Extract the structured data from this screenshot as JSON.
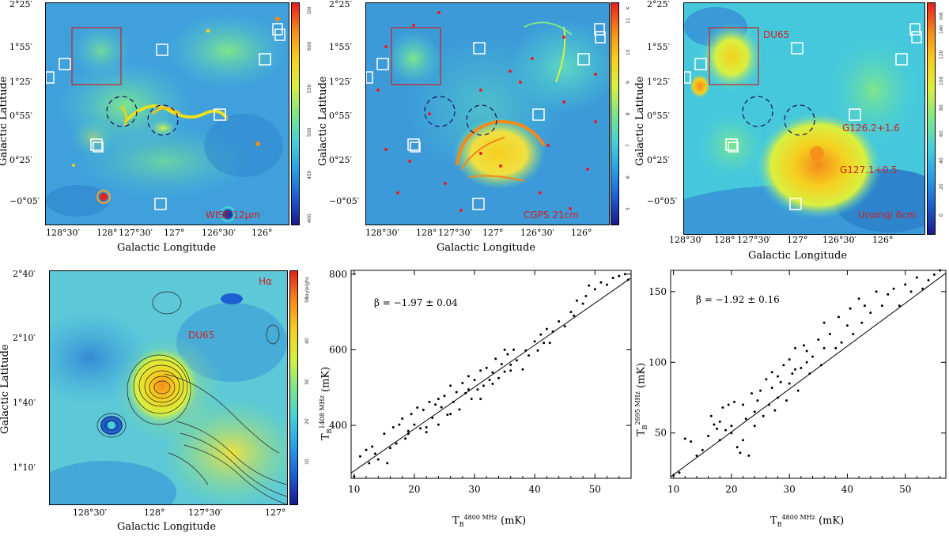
{
  "colors": {
    "panel_bg": "#3d9ad8",
    "red_box": "#d02020",
    "label_red": "#d02020",
    "square": "#ffffff",
    "circle": "#1a1a6a",
    "contour": "#222222"
  },
  "colorbar_stops": [
    "#1a1a8c",
    "#1e5fd2",
    "#28a0e6",
    "#46d0d8",
    "#7ee68a",
    "#d8f040",
    "#f5d020",
    "#f58a1a",
    "#e62020"
  ],
  "panels": {
    "wise": {
      "label": "WISE 12μm",
      "cbar_unit": "DN",
      "cbar_ticks": [
        "400",
        "450",
        "500",
        "550",
        "600"
      ],
      "xlabel": "Galactic Longitude",
      "ylabel": "Galactic Latitude",
      "xticks": [
        "128°30′",
        "128°",
        "127°30′",
        "127°",
        "126°30′",
        "126°"
      ],
      "yticks": [
        "2°25′",
        "1°55′",
        "1°25′",
        "0°55′",
        "0°25′",
        "−0°05′"
      ]
    },
    "cgps": {
      "label": "CGPS 21cm",
      "cbar_unit": "K",
      "cbar_ticks": [
        "5",
        "6",
        "7",
        "8",
        "9",
        "10",
        "11"
      ],
      "xlabel": "Galactic Longitude",
      "ylabel": "Galactic Latitude",
      "xticks": [
        "128°30′",
        "128°",
        "127°30′",
        "127°",
        "126°30′",
        "126°"
      ],
      "yticks": [
        "2°25′",
        "1°55′",
        "1°25′",
        "0°55′",
        "0°25′",
        "−0°05′"
      ]
    },
    "urumqi": {
      "label": "Urumqi 6cm",
      "cbar_unit": "mK",
      "cbar_ticks": [
        "0",
        "20",
        "40",
        "60",
        "80",
        "100",
        "120",
        "140"
      ],
      "xlabel": "Galactic Longitude",
      "ylabel": "Galactic Latitude",
      "xticks": [
        "128°30′",
        "128°",
        "127°30′",
        "127°",
        "126°30′",
        "126°"
      ],
      "yticks": [
        "2°25′",
        "1°55′",
        "1°25′",
        "0°55′",
        "0°25′",
        "−0°05′"
      ],
      "annotations": [
        "DU65",
        "G126.2+1.6",
        "G127.1+0.5"
      ]
    },
    "halpha": {
      "label": "Hα",
      "cbar_unit": "Rayleighs",
      "cbar_ticks": [
        "10",
        "20",
        "30",
        "40",
        "50"
      ],
      "xlabel": "Galactic Longitude",
      "ylabel": "Galactic Latitude",
      "xticks": [
        "128°30′",
        "128°",
        "127°30′",
        "127°"
      ],
      "yticks": [
        "2°40′",
        "2°10′",
        "1°40′",
        "1°10′"
      ],
      "annotations": [
        "DU65"
      ]
    }
  },
  "chart_data": [
    {
      "type": "scatter",
      "xlabel_main": "T",
      "xlabel_sub": "B",
      "xlabel_sup": "4800 MHz",
      "xlabel_unit": "(mK)",
      "ylabel_main": "T",
      "ylabel_sub": "B",
      "ylabel_sup": "1408 MHz",
      "ylabel_unit": "(mK)",
      "annotation": "β = −1.97 ± 0.04",
      "xlim": [
        9.5,
        56
      ],
      "ylim": [
        260,
        810
      ],
      "xticks": [
        10,
        20,
        30,
        40,
        50
      ],
      "yticks": [
        400,
        600,
        800
      ],
      "fit": {
        "x": [
          9.5,
          56
        ],
        "y": [
          274,
          790
        ]
      },
      "points": [
        [
          10,
          265
        ],
        [
          11,
          318
        ],
        [
          12,
          335
        ],
        [
          12.5,
          300
        ],
        [
          13,
          344
        ],
        [
          13.5,
          325
        ],
        [
          14,
          310
        ],
        [
          15,
          378
        ],
        [
          15.5,
          300
        ],
        [
          16,
          340
        ],
        [
          16.5,
          395
        ],
        [
          17,
          352
        ],
        [
          17.5,
          402
        ],
        [
          18,
          418
        ],
        [
          18.5,
          365
        ],
        [
          19,
          378
        ],
        [
          19.5,
          430
        ],
        [
          20,
          402
        ],
        [
          20.5,
          447
        ],
        [
          21,
          392
        ],
        [
          21.5,
          441
        ],
        [
          22,
          382
        ],
        [
          22.5,
          462
        ],
        [
          23,
          420
        ],
        [
          23.5,
          455
        ],
        [
          24,
          402
        ],
        [
          24.5,
          448
        ],
        [
          25,
          478
        ],
        [
          25.5,
          428
        ],
        [
          26,
          505
        ],
        [
          26.5,
          462
        ],
        [
          27,
          488
        ],
        [
          27.5,
          442
        ],
        [
          28,
          512
        ],
        [
          28.5,
          485
        ],
        [
          29,
          530
        ],
        [
          29.5,
          470
        ],
        [
          30,
          520
        ],
        [
          30.5,
          495
        ],
        [
          31,
          545
        ],
        [
          31.5,
          505
        ],
        [
          32,
          552
        ],
        [
          32.5,
          520
        ],
        [
          33,
          540
        ],
        [
          33.5,
          576
        ],
        [
          34,
          525
        ],
        [
          34.5,
          562
        ],
        [
          35,
          542
        ],
        [
          35.5,
          588
        ],
        [
          36,
          560
        ],
        [
          36.5,
          600
        ],
        [
          37,
          572
        ],
        [
          38,
          548
        ],
        [
          38.5,
          598
        ],
        [
          39,
          585
        ],
        [
          40,
          622
        ],
        [
          40.5,
          598
        ],
        [
          41,
          640
        ],
        [
          41.5,
          618
        ],
        [
          42,
          655
        ],
        [
          42.5,
          618
        ],
        [
          43,
          648
        ],
        [
          44,
          675
        ],
        [
          45,
          662
        ],
        [
          46,
          700
        ],
        [
          46.5,
          690
        ],
        [
          47,
          730
        ],
        [
          48,
          722
        ],
        [
          48.5,
          742
        ],
        [
          49,
          770
        ],
        [
          50,
          760
        ],
        [
          51,
          778
        ],
        [
          52,
          772
        ],
        [
          53,
          790
        ],
        [
          54,
          795
        ],
        [
          55,
          800
        ],
        [
          55.5,
          785
        ],
        [
          22,
          395
        ],
        [
          26,
          430
        ],
        [
          29,
          495
        ],
        [
          33,
          510
        ],
        [
          36,
          545
        ],
        [
          19,
          385
        ],
        [
          24,
          470
        ],
        [
          31,
          470
        ],
        [
          35,
          600
        ]
      ]
    },
    {
      "type": "scatter",
      "xlabel_main": "T",
      "xlabel_sub": "B",
      "xlabel_sup": "4800 MHz",
      "xlabel_unit": "(mK)",
      "ylabel_main": "T",
      "ylabel_sub": "B",
      "ylabel_sup": "2695 MHz",
      "ylabel_unit": "(mK)",
      "annotation": "β = −1.92 ± 0.16",
      "xlim": [
        9.5,
        57
      ],
      "ylim": [
        18,
        165
      ],
      "xticks": [
        10,
        20,
        30,
        40,
        50
      ],
      "yticks": [
        50,
        100,
        150
      ],
      "fit": {
        "x": [
          9.5,
          57
        ],
        "y": [
          19,
          163
        ]
      },
      "points": [
        [
          10,
          20
        ],
        [
          11,
          22
        ],
        [
          12,
          46
        ],
        [
          13,
          44
        ],
        [
          14,
          34
        ],
        [
          15,
          38
        ],
        [
          16,
          48
        ],
        [
          16.5,
          62
        ],
        [
          17,
          56
        ],
        [
          17.5,
          53
        ],
        [
          18,
          58
        ],
        [
          18.5,
          68
        ],
        [
          19,
          52
        ],
        [
          19.5,
          70
        ],
        [
          20,
          50
        ],
        [
          20.5,
          72
        ],
        [
          21,
          40
        ],
        [
          21.5,
          36
        ],
        [
          22,
          45
        ],
        [
          22.5,
          60
        ],
        [
          23,
          34
        ],
        [
          23.5,
          78
        ],
        [
          24,
          55
        ],
        [
          24.5,
          73
        ],
        [
          25,
          80
        ],
        [
          25.5,
          62
        ],
        [
          26,
          88
        ],
        [
          26.5,
          70
        ],
        [
          27,
          93
        ],
        [
          27.5,
          66
        ],
        [
          28,
          90
        ],
        [
          28.5,
          86
        ],
        [
          29,
          98
        ],
        [
          29.5,
          73
        ],
        [
          30,
          102
        ],
        [
          30.5,
          92
        ],
        [
          31,
          110
        ],
        [
          31.5,
          80
        ],
        [
          32,
          96
        ],
        [
          32.5,
          112
        ],
        [
          33,
          108
        ],
        [
          33.5,
          92
        ],
        [
          34,
          104
        ],
        [
          35,
          116
        ],
        [
          35.5,
          98
        ],
        [
          36,
          128
        ],
        [
          37,
          120
        ],
        [
          38,
          110
        ],
        [
          38.5,
          132
        ],
        [
          39,
          114
        ],
        [
          40,
          126
        ],
        [
          40.5,
          138
        ],
        [
          41,
          120
        ],
        [
          42,
          145
        ],
        [
          42.5,
          128
        ],
        [
          43,
          140
        ],
        [
          44,
          135
        ],
        [
          45,
          150
        ],
        [
          46,
          140
        ],
        [
          47,
          148
        ],
        [
          48,
          152
        ],
        [
          49,
          140
        ],
        [
          50,
          155
        ],
        [
          51,
          150
        ],
        [
          52,
          160
        ],
        [
          53,
          152
        ],
        [
          54,
          158
        ],
        [
          55,
          162
        ],
        [
          56,
          165
        ],
        [
          24,
          65
        ],
        [
          27,
          82
        ],
        [
          30,
          85
        ],
        [
          33,
          100
        ],
        [
          36,
          110
        ],
        [
          20,
          55
        ],
        [
          18,
          45
        ],
        [
          22,
          70
        ],
        [
          28,
          75
        ],
        [
          31,
          95
        ]
      ]
    }
  ]
}
